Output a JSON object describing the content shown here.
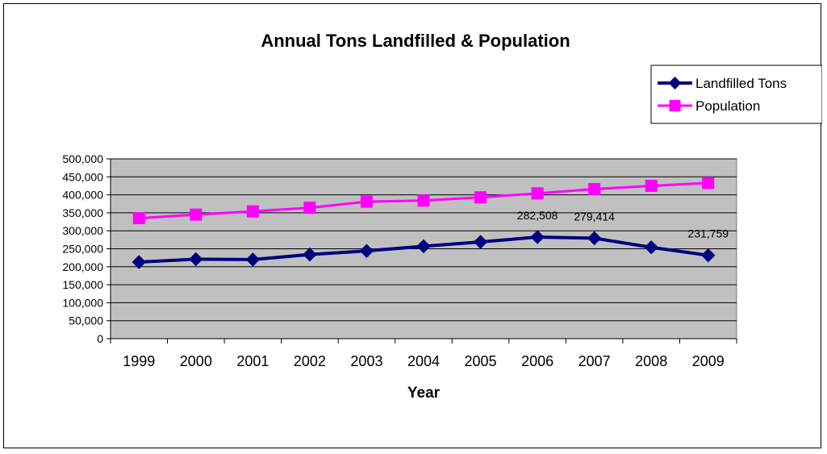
{
  "chart_data": {
    "type": "line",
    "title": "Annual Tons Landfilled & Population",
    "xlabel": "Year",
    "ylabel": "",
    "categories": [
      "1999",
      "2000",
      "2001",
      "2002",
      "2003",
      "2004",
      "2005",
      "2006",
      "2007",
      "2008",
      "2009"
    ],
    "ylim": [
      0,
      500000
    ],
    "yticks": [
      "0",
      "50,000",
      "100,000",
      "150,000",
      "200,000",
      "250,000",
      "300,000",
      "350,000",
      "400,000",
      "450,000",
      "500,000"
    ],
    "grid": true,
    "legend_position": "top-right",
    "series": [
      {
        "name": "Landfilled Tons",
        "color": "#000080",
        "marker": "diamond",
        "values": [
          213000,
          221000,
          220000,
          234000,
          244000,
          257000,
          269000,
          282508,
          279414,
          254000,
          231759
        ]
      },
      {
        "name": "Population",
        "color": "#FF00FF",
        "marker": "square",
        "values": [
          335000,
          345000,
          354000,
          364000,
          381000,
          384000,
          393000,
          404000,
          416000,
          425000,
          433000
        ]
      }
    ],
    "annotations": [
      {
        "series": 0,
        "index": 7,
        "text": "282,508"
      },
      {
        "series": 0,
        "index": 8,
        "text": "279,414"
      },
      {
        "series": 0,
        "index": 10,
        "text": "231,759"
      }
    ],
    "plot_background": "#C0C0C0"
  }
}
